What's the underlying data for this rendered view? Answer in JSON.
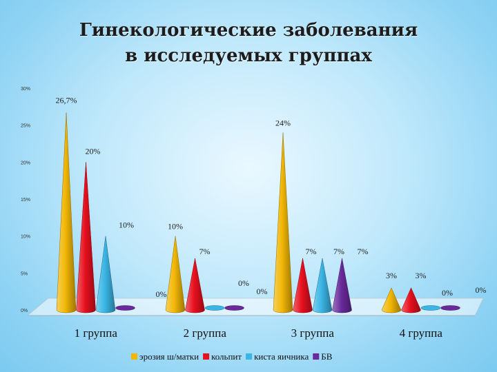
{
  "chart_data": {
    "type": "bar",
    "title": [
      "Гинекологические заболевания",
      "в исследуемых группах"
    ],
    "categories": [
      "1 группа",
      "2 группа",
      "3 группа",
      "4 группа"
    ],
    "series": [
      {
        "name": "эрозия ш/матки",
        "color": "#f2b705",
        "values": [
          26.7,
          10,
          24,
          3
        ]
      },
      {
        "name": "кольпит",
        "color": "#e8101e",
        "values": [
          20,
          7,
          7,
          3
        ]
      },
      {
        "name": "киста яичника",
        "color": "#3ab6e6",
        "values": [
          10,
          0,
          7,
          0
        ]
      },
      {
        "name": "БВ",
        "color": "#6a2a9c",
        "values": [
          0,
          0,
          7,
          0
        ]
      }
    ],
    "y_ticks": [
      "0%",
      "5%",
      "10%",
      "15%",
      "20%",
      "25%",
      "30%"
    ],
    "ylim": [
      0,
      30
    ],
    "legend_position": "bottom",
    "data_labels": [
      {
        "text": "26,7%",
        "group": 0,
        "series": 0
      },
      {
        "text": "20%",
        "group": 0,
        "series": 1
      },
      {
        "text": "10%",
        "group": 0,
        "series": 2
      },
      {
        "text": "0%",
        "group": 0,
        "series": 3
      },
      {
        "text": "10%",
        "group": 1,
        "series": 0
      },
      {
        "text": "7%",
        "group": 1,
        "series": 1
      },
      {
        "text": "0%",
        "group": 1,
        "series": 2
      },
      {
        "text": "0%",
        "group": 1,
        "series": 3
      },
      {
        "text": "24%",
        "group": 2,
        "series": 0
      },
      {
        "text": "7%",
        "group": 2,
        "series": 1
      },
      {
        "text": "7%",
        "group": 2,
        "series": 2
      },
      {
        "text": "7%",
        "group": 2,
        "series": 3
      },
      {
        "text": "3%",
        "group": 3,
        "series": 0
      },
      {
        "text": "3%",
        "group": 3,
        "series": 1
      },
      {
        "text": "0%",
        "group": 3,
        "series": 2
      },
      {
        "text": "0%",
        "group": 3,
        "series": 3
      }
    ]
  }
}
